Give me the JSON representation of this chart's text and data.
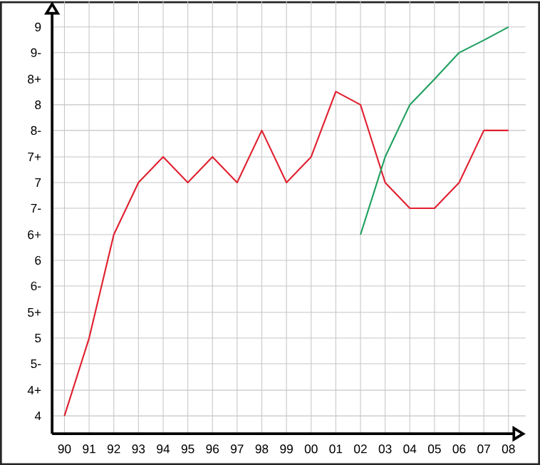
{
  "chart_data": {
    "type": "line",
    "categories": [
      "90",
      "91",
      "92",
      "93",
      "94",
      "95",
      "96",
      "97",
      "98",
      "99",
      "00",
      "01",
      "02",
      "03",
      "04",
      "05",
      "06",
      "07",
      "08"
    ],
    "series": [
      {
        "color": "#e0202f",
        "values": [
          4,
          5,
          6.33,
          7,
          7.33,
          7,
          7.33,
          7,
          7.67,
          7,
          7.33,
          8.17,
          8,
          7,
          6.67,
          6.67,
          7,
          7.67,
          7.67
        ]
      },
      {
        "color": "#20a060",
        "values": [
          null,
          null,
          null,
          null,
          null,
          null,
          null,
          null,
          null,
          null,
          null,
          null,
          6.33,
          7.33,
          8,
          8.33,
          8.67,
          8.83,
          9
        ]
      }
    ],
    "ylim": [
      3.77,
      9.33
    ],
    "yticks": [
      4,
      {
        "value": 4.33,
        "label": "4+"
      },
      {
        "value": 4.67,
        "label": "5-"
      },
      5,
      {
        "value": 5.33,
        "label": "5+"
      },
      {
        "value": 5.67,
        "label": "6-"
      },
      6,
      {
        "value": 6.33,
        "label": "6+"
      },
      {
        "value": 6.67,
        "label": "7-"
      },
      7,
      {
        "value": 7.33,
        "label": "7+"
      },
      {
        "value": 7.67,
        "label": "8-"
      },
      8,
      {
        "value": 8.33,
        "label": "8+"
      },
      {
        "value": 8.67,
        "label": "9-"
      },
      9
    ],
    "grid": true,
    "line_style": "solid",
    "marker": "none"
  }
}
